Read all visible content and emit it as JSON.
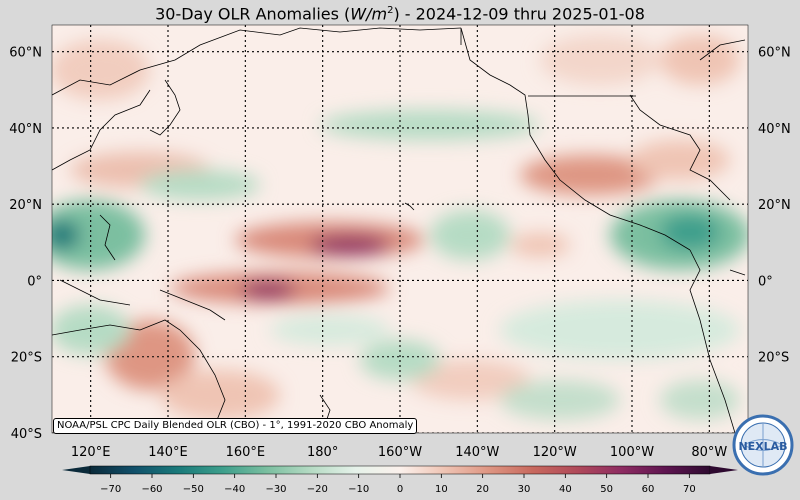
{
  "title": {
    "prefix": "30-Day OLR Anomalies (",
    "unit": "W/m",
    "unit_exp": "2",
    "suffix": ") - 2024-12-09 thru 2025-01-08"
  },
  "map": {
    "lat_labels_left": [
      "60°N",
      "40°N",
      "20°N",
      "0°",
      "20°S",
      "40°S"
    ],
    "lat_labels_right": [
      "60°N",
      "40°N",
      "20°N",
      "0°",
      "20°S"
    ],
    "lon_labels": [
      "120°E",
      "140°E",
      "160°E",
      "180°",
      "160°W",
      "140°W",
      "120°W",
      "100°W",
      "80°W"
    ],
    "lat_range": [
      -40,
      67
    ],
    "lon_range": [
      110,
      290
    ]
  },
  "credit": "NOAA/PSL CPC Daily Blended OLR (CBO) - 1°, 1991-2020 CBO Anomaly",
  "logo_text": "NEXLAB",
  "colorbar": {
    "ticks": [
      "−70",
      "−60",
      "−50",
      "−40",
      "−30",
      "−20",
      "−10",
      "0",
      "10",
      "20",
      "30",
      "40",
      "50",
      "60",
      "70"
    ],
    "range": [
      -75,
      75
    ],
    "colors": [
      "#0b2a3a",
      "#11506a",
      "#1a7a7a",
      "#3e9f8c",
      "#7bbfa0",
      "#b6dbc4",
      "#e6f2ea",
      "#fbf1ec",
      "#efc4b4",
      "#de9683",
      "#c8695e",
      "#b04a5a",
      "#8e2c62",
      "#5e1550",
      "#2e0a30"
    ]
  },
  "colors": {
    "background": "#d9d9d9",
    "ocean_neutral": "#faeee9"
  }
}
